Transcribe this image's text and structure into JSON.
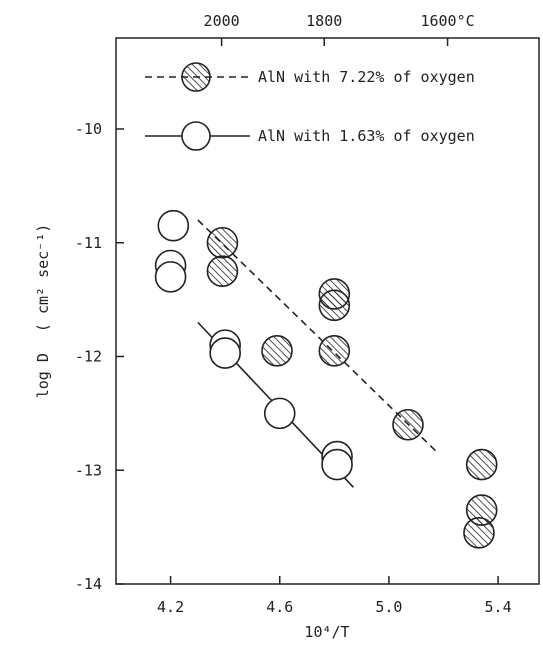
{
  "chart_data": {
    "type": "scatter",
    "title": "",
    "xlabel": "10⁴/T",
    "ylabel_main": "log D",
    "ylabel_units": "( cm² sec⁻¹)",
    "xlim": [
      4.0,
      5.55
    ],
    "ylim": [
      -14,
      -9.2
    ],
    "x_ticks": [
      4.2,
      4.6,
      5.0,
      5.4
    ],
    "x_tick_labels": [
      "4.2",
      "4.6",
      "5.0",
      "5.4"
    ],
    "y_ticks": [
      -14,
      -13,
      -12,
      -11,
      -10
    ],
    "y_tick_labels": [
      "-14",
      "-13",
      "-12",
      "-11",
      "-10"
    ],
    "top_axis": {
      "ticks": [
        4.387,
        4.763,
        5.215
      ],
      "labels": [
        "2000",
        "1800",
        "1600°C"
      ]
    },
    "grid": false,
    "legend_position": "top-right",
    "series": [
      {
        "name": "AlN with 7.22% of oxygen",
        "marker": "hatched-circle",
        "line_style": "dashed",
        "points": [
          {
            "x": 4.39,
            "y": -11.0
          },
          {
            "x": 4.39,
            "y": -11.25
          },
          {
            "x": 4.59,
            "y": -11.95
          },
          {
            "x": 4.8,
            "y": -11.45
          },
          {
            "x": 4.8,
            "y": -11.55
          },
          {
            "x": 4.8,
            "y": -11.95
          },
          {
            "x": 5.07,
            "y": -12.6
          },
          {
            "x": 5.34,
            "y": -12.95
          },
          {
            "x": 5.34,
            "y": -13.35
          },
          {
            "x": 5.33,
            "y": -13.55
          }
        ],
        "fit_line": [
          {
            "x": 4.3,
            "y": -10.8
          },
          {
            "x": 5.18,
            "y": -12.85
          }
        ]
      },
      {
        "name": "AlN with 1.63% of oxygen",
        "marker": "open-circle",
        "line_style": "solid",
        "points": [
          {
            "x": 4.21,
            "y": -10.85
          },
          {
            "x": 4.2,
            "y": -11.2
          },
          {
            "x": 4.2,
            "y": -11.3
          },
          {
            "x": 4.4,
            "y": -11.9
          },
          {
            "x": 4.4,
            "y": -11.97
          },
          {
            "x": 4.6,
            "y": -12.5
          },
          {
            "x": 4.81,
            "y": -12.88
          },
          {
            "x": 4.81,
            "y": -12.95
          }
        ],
        "fit_line": [
          {
            "x": 4.3,
            "y": -11.7
          },
          {
            "x": 4.87,
            "y": -13.15
          }
        ]
      }
    ]
  }
}
